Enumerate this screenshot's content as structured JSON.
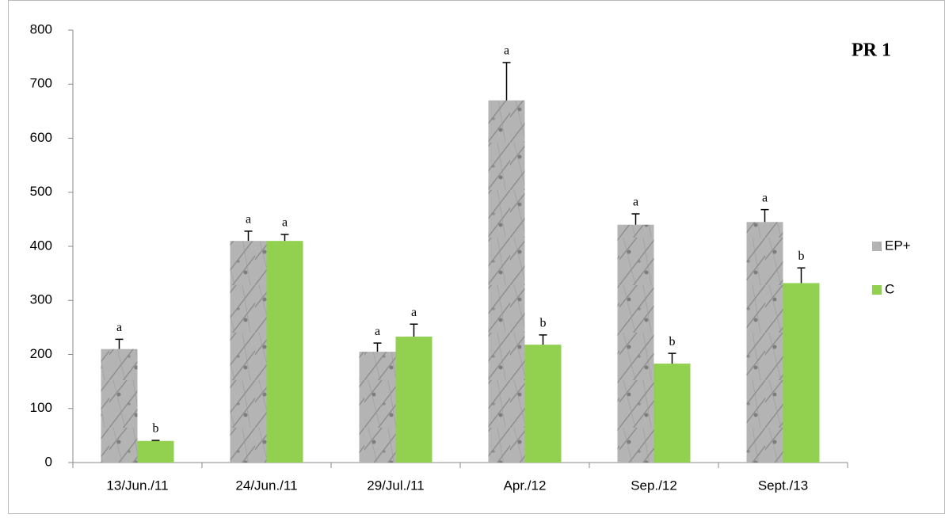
{
  "chart_data": {
    "type": "bar",
    "title": "PR 1",
    "categories": [
      "13/Jun./11",
      "24/Jun./11",
      "29/Jul./11",
      "Apr./12",
      "Sep./12",
      "Sept./13"
    ],
    "series": [
      {
        "name": "EP+",
        "color": "#b4b4b4",
        "values": [
          210,
          410,
          205,
          670,
          440,
          445
        ],
        "errors": [
          18,
          18,
          16,
          70,
          20,
          23
        ],
        "letters": [
          "a",
          "a",
          "a",
          "a",
          "a",
          "a"
        ]
      },
      {
        "name": "C",
        "color": "#92d050",
        "values": [
          40,
          410,
          233,
          218,
          183,
          332
        ],
        "errors": [
          1,
          12,
          23,
          18,
          19,
          28
        ],
        "letters": [
          "b",
          "a",
          "a",
          "b",
          "b",
          "b"
        ]
      }
    ],
    "ylim": [
      0,
      800
    ],
    "yticks": [
      0,
      100,
      200,
      300,
      400,
      500,
      600,
      700,
      800
    ],
    "grid": false,
    "legend": "right"
  }
}
